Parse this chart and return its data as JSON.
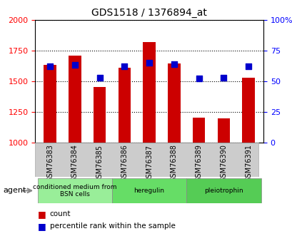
{
  "title": "GDS1518 / 1376894_at",
  "categories": [
    "GSM76383",
    "GSM76384",
    "GSM76385",
    "GSM76386",
    "GSM76387",
    "GSM76388",
    "GSM76389",
    "GSM76390",
    "GSM76391"
  ],
  "counts": [
    1630,
    1710,
    1450,
    1610,
    1820,
    1645,
    1205,
    1195,
    1530
  ],
  "percentiles": [
    62,
    63,
    53,
    62,
    65,
    64,
    52,
    53,
    62
  ],
  "ymin": 1000,
  "ymax": 2000,
  "yticks": [
    1000,
    1250,
    1500,
    1750,
    2000
  ],
  "y2min": 0,
  "y2max": 100,
  "y2ticks": [
    0,
    25,
    50,
    75,
    100
  ],
  "bar_color": "#cc0000",
  "dot_color": "#0000cc",
  "bar_width": 0.5,
  "agent_groups": [
    {
      "label": "conditioned medium from\nBSN cells",
      "start": 0,
      "end": 3,
      "color": "#99ee99"
    },
    {
      "label": "heregulin",
      "start": 3,
      "end": 6,
      "color": "#66dd66"
    },
    {
      "label": "pleiotrophin",
      "start": 6,
      "end": 9,
      "color": "#55cc55"
    }
  ],
  "legend_count_label": "count",
  "legend_pct_label": "percentile rank within the sample",
  "xlabel_color": "#888888",
  "ticklabel_bg": "#cccccc"
}
